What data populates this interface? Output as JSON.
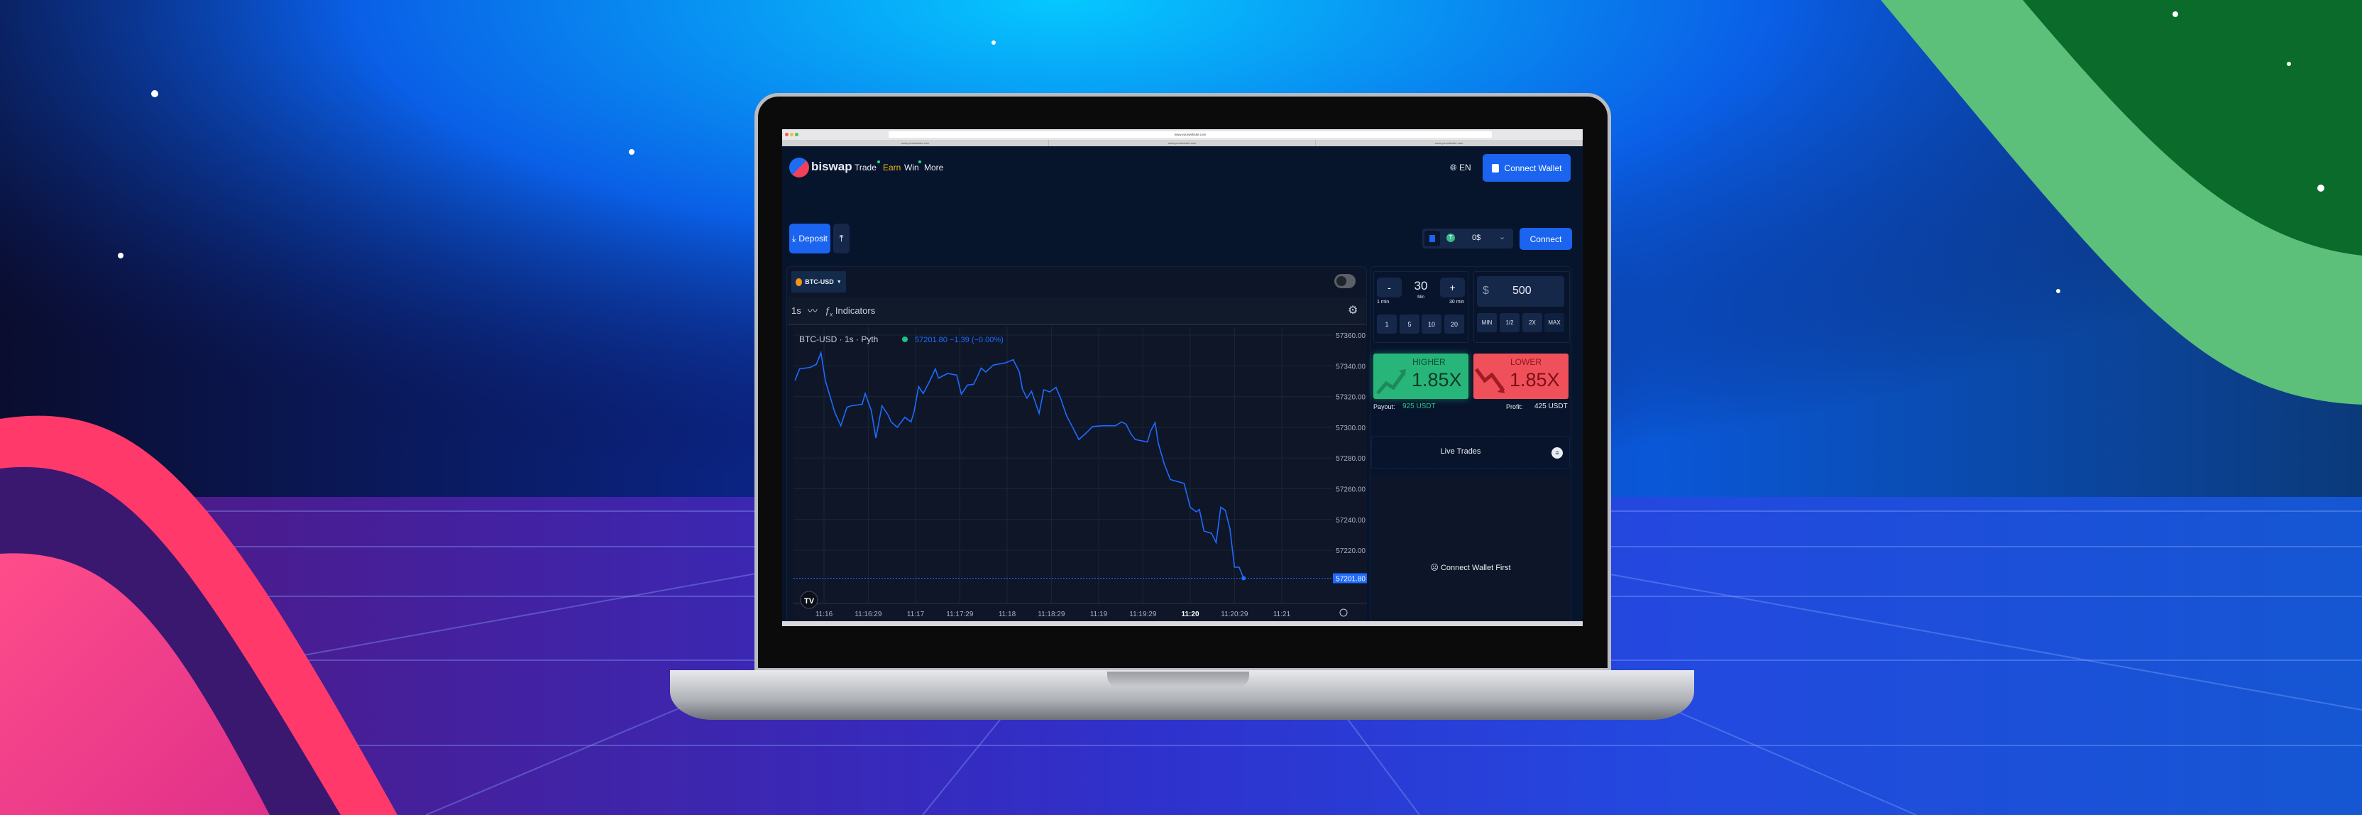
{
  "browser": {
    "url": "www.yourwebsite.com",
    "tabs": [
      "www.yourwebsite.com",
      "www.yourwebsite.com",
      "www.yourwebsite.com"
    ]
  },
  "nav": {
    "logo": "biswap",
    "items": [
      {
        "label": "Trade",
        "dot": true
      },
      {
        "label": "Earn",
        "color": "#f0b90b"
      },
      {
        "label": "Win",
        "dot": true
      },
      {
        "label": "More"
      }
    ],
    "language": "EN",
    "connect_wallet": "Connect Wallet"
  },
  "actions": {
    "deposit": "Deposit",
    "wallet_balance": "0$",
    "connect": "Connect"
  },
  "chart_panel": {
    "pair": "BTC-USD",
    "interval": "1s",
    "indicators": "Indicators",
    "legend_title": "BTC-USD · 1s · Pyth",
    "legend_values": "57201.80  −1.39 (−0.00%)"
  },
  "chart_data": {
    "type": "line",
    "title": "BTC-USD · 1s · Pyth",
    "x_ticks": [
      "11:16",
      "11:16:29",
      "11:17",
      "11:17:29",
      "11:18",
      "11:18:29",
      "11:19",
      "11:19:29",
      "11:20",
      "11:20:29",
      "11:21"
    ],
    "y_ticks": [
      "57360.00",
      "57340.00",
      "57320.00",
      "57300.00",
      "57280.00",
      "57260.00",
      "57240.00",
      "57220.00"
    ],
    "ylim": [
      57190,
      57360
    ],
    "last_price_label": "57201.80",
    "line_color": "#1f6bff",
    "grid": true,
    "series": [
      {
        "points": [
          [
            "11:15:41",
            57330.5
          ],
          [
            "11:15:44",
            57338
          ],
          [
            "11:15:51",
            57339
          ],
          [
            "11:15:55",
            57341
          ],
          [
            "11:15:58",
            57348.5
          ],
          [
            "11:16:01",
            57330
          ],
          [
            "11:16:04",
            57320
          ],
          [
            "11:16:07",
            57310
          ],
          [
            "11:16:11",
            57301
          ],
          [
            "11:16:15",
            57313
          ],
          [
            "11:16:18",
            57314
          ],
          [
            "11:16:25",
            57315
          ],
          [
            "11:16:27",
            57322
          ],
          [
            "11:16:31",
            57311
          ],
          [
            "11:16:34",
            57293
          ],
          [
            "11:16:38",
            57314
          ],
          [
            "11:16:42",
            57308
          ],
          [
            "11:16:44",
            57303.5
          ],
          [
            "11:16:48",
            57300
          ],
          [
            "11:16:53",
            57306.5
          ],
          [
            "11:16:57",
            57303.5
          ],
          [
            "11:16:59",
            57310
          ],
          [
            "11:17:02",
            57326.5
          ],
          [
            "11:17:05",
            57322
          ],
          [
            "11:17:09",
            57329.5
          ],
          [
            "11:17:13",
            57338
          ],
          [
            "11:17:15",
            57332
          ],
          [
            "11:17:21",
            57335
          ],
          [
            "11:17:27",
            57334
          ],
          [
            "11:17:30",
            57321.5
          ],
          [
            "11:17:34",
            57327.5
          ],
          [
            "11:17:38",
            57328
          ],
          [
            "11:17:41",
            57334
          ],
          [
            "11:17:43",
            57338.5
          ],
          [
            "11:17:46",
            57336
          ],
          [
            "11:17:51",
            57340.5
          ],
          [
            "11:17:59",
            57342
          ],
          [
            "11:18:04",
            57344
          ],
          [
            "11:18:08",
            57336
          ],
          [
            "11:18:10",
            57325
          ],
          [
            "11:18:13",
            57319
          ],
          [
            "11:18:16",
            57323.5
          ],
          [
            "11:18:21",
            57309
          ],
          [
            "11:18:24",
            57324.5
          ],
          [
            "11:18:28",
            57323
          ],
          [
            "11:18:32",
            57326
          ],
          [
            "11:18:35",
            57319
          ],
          [
            "11:18:39",
            57307.5
          ],
          [
            "11:18:44",
            57298
          ],
          [
            "11:18:47",
            57292
          ],
          [
            "11:18:52",
            57296.5
          ],
          [
            "11:18:56",
            57300.5
          ],
          [
            "11:19:03",
            57301
          ],
          [
            "11:19:11",
            57301
          ],
          [
            "11:19:15",
            57303.5
          ],
          [
            "11:19:18",
            57302
          ],
          [
            "11:19:21",
            57296
          ],
          [
            "11:19:24",
            57292
          ],
          [
            "11:19:32",
            57290.5
          ],
          [
            "11:19:34",
            57297.5
          ],
          [
            "11:19:37",
            57303
          ],
          [
            "11:19:39",
            57290
          ],
          [
            "11:19:43",
            57276
          ],
          [
            "11:19:47",
            57266
          ],
          [
            "11:19:56",
            57263.5
          ],
          [
            "11:20:00",
            57248
          ],
          [
            "11:20:04",
            57245
          ],
          [
            "11:20:06",
            57246.5
          ],
          [
            "11:20:09",
            57232.5
          ],
          [
            "11:20:14",
            57231
          ],
          [
            "11:20:17",
            57225
          ],
          [
            "11:20:20",
            57248
          ],
          [
            "11:20:23",
            57246
          ],
          [
            "11:20:26",
            57234
          ],
          [
            "11:20:29",
            57209
          ],
          [
            "11:20:32",
            57209
          ],
          [
            "11:20:35",
            57201.8
          ]
        ]
      }
    ]
  },
  "trade": {
    "duration": {
      "value": "30",
      "unit": "Min",
      "minus": "-",
      "plus": "+",
      "min_label": "1 min",
      "max_label": "30 min",
      "presets": [
        "1",
        "5",
        "10",
        "20"
      ]
    },
    "amount": {
      "currency": "$",
      "value": "500",
      "presets": [
        "MIN",
        "1/2",
        "2X",
        "MAX"
      ]
    },
    "higher": {
      "label": "HIGHER",
      "multiplier": "1.85X",
      "color": "#27b57a"
    },
    "lower": {
      "label": "LOWER",
      "multiplier": "1.85X",
      "color": "#f0505a"
    },
    "payout_label": "Payout:",
    "payout_value": "925 USDT",
    "profit_label": "Profit:",
    "profit_value": "425 USDT"
  },
  "live_trades": {
    "title": "Live Trades",
    "empty": "Connect Wallet First"
  }
}
